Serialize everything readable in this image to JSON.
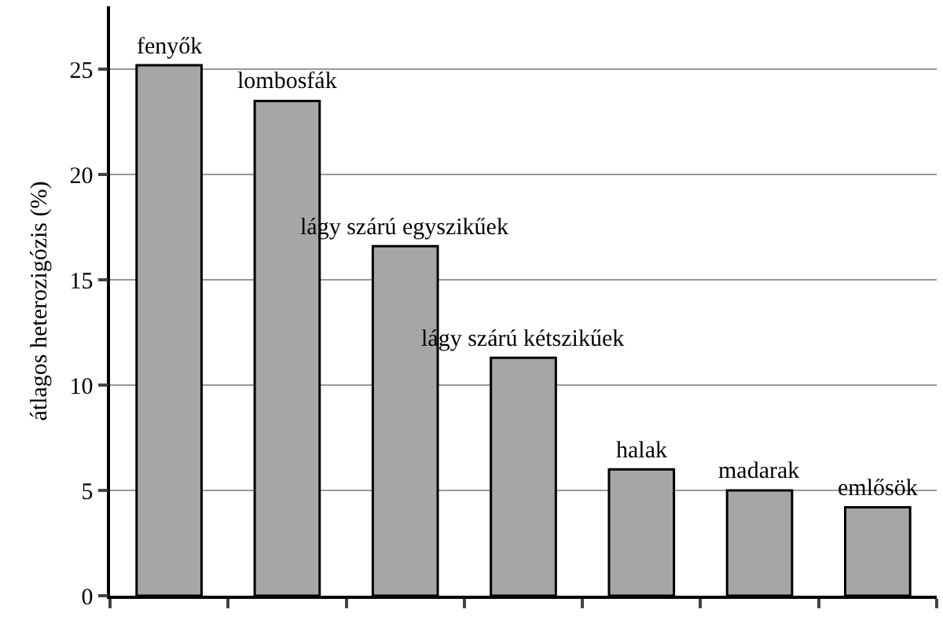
{
  "chart_data": {
    "type": "bar",
    "ylabel": "átlagos heterozigózis (%)",
    "categories": [
      "fenyők",
      "lombosfák",
      "lágy szárú egyszikűek",
      "lágy szárú kétszikűek",
      "halak",
      "madarak",
      "emlősök"
    ],
    "values": [
      25.2,
      23.5,
      16.6,
      11.3,
      6.0,
      5.0,
      4.2
    ],
    "color": "#a6a6a6",
    "ylim": [
      0,
      28
    ],
    "yticks": [
      0,
      5,
      10,
      15,
      20,
      25
    ],
    "grid": "y",
    "tick_labels": "y"
  }
}
